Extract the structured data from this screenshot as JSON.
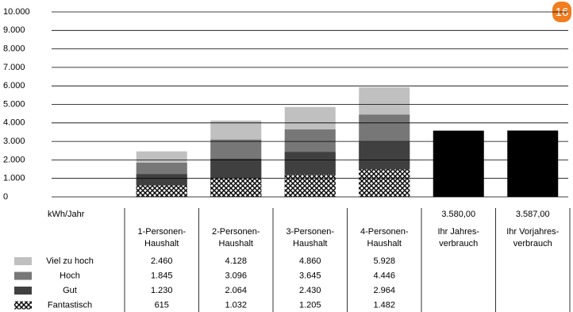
{
  "badge": "16",
  "chart_data": {
    "type": "bar",
    "unit_label": "kWh/Jahr",
    "categories": [
      "1-Personen- Haushalt",
      "2-Personen- Haushalt",
      "3-Personen- Haushalt",
      "4-Personen- Haushalt",
      "Ihr Jahres- verbrauch",
      "Ihr Vorjahres- verbrauch"
    ],
    "series": [
      {
        "name": "Viel zu hoch",
        "color": "#c0c0c0",
        "values": [
          2460,
          4128,
          4860,
          5928,
          null,
          null
        ],
        "value_labels": [
          "2.460",
          "4.128",
          "4.860",
          "5.928",
          null,
          null
        ]
      },
      {
        "name": "Hoch",
        "color": "#777777",
        "values": [
          1845,
          3096,
          3645,
          4446,
          null,
          null
        ],
        "value_labels": [
          "1.845",
          "3.096",
          "3.645",
          "4.446",
          null,
          null
        ]
      },
      {
        "name": "Gut",
        "color": "#404040",
        "values": [
          1230,
          2064,
          2430,
          2964,
          null,
          null
        ],
        "value_labels": [
          "1.230",
          "2.064",
          "2.430",
          "2.964",
          null,
          null
        ]
      },
      {
        "name": "Fantastisch",
        "color": "#000000",
        "pattern": "crosshatch",
        "values": [
          615,
          1032,
          1205,
          1482,
          null,
          null
        ],
        "value_labels": [
          "615",
          "1.032",
          "1.205",
          "1.482",
          null,
          null
        ]
      }
    ],
    "consumption": {
      "color": "#000000",
      "values": [
        null,
        null,
        null,
        null,
        3580,
        3587
      ],
      "value_labels": [
        null,
        null,
        null,
        null,
        "3.580,00",
        "3.587,00"
      ]
    },
    "ylim": [
      0,
      10000
    ],
    "yticks": [
      0,
      {
        "value": 1000,
        "label": "1.000"
      },
      {
        "value": 2000,
        "label": "2.000"
      },
      {
        "value": 3000,
        "label": "3.000"
      },
      {
        "value": 4000,
        "label": "4.000"
      },
      {
        "value": 5000,
        "label": "5.000"
      },
      {
        "value": 6000,
        "label": "6.000"
      },
      {
        "value": 7000,
        "label": "7.000"
      },
      {
        "value": 8000,
        "label": "8.000"
      },
      {
        "value": 9000,
        "label": "9.000"
      },
      {
        "value": 10000,
        "label": "10.000"
      }
    ],
    "grid": true
  }
}
